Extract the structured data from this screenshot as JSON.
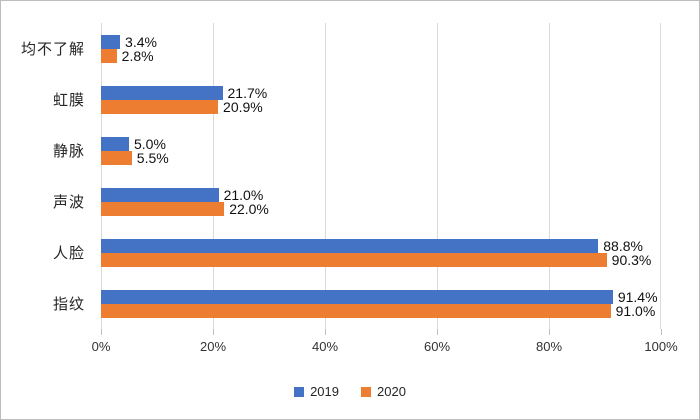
{
  "chart_data": {
    "type": "bar",
    "orientation": "horizontal",
    "title": "",
    "xlabel": "",
    "ylabel": "",
    "categories_order": "top-to-bottom",
    "categories": [
      "均不了解",
      "虹膜",
      "静脉",
      "声波",
      "人脸",
      "指纹"
    ],
    "series": [
      {
        "name": "2019",
        "color": "#4472C4",
        "values": [
          3.4,
          21.7,
          5.0,
          21.0,
          88.8,
          91.4
        ],
        "labels": [
          "3.4%",
          "21.7%",
          "5.0%",
          "21.0%",
          "88.8%",
          "91.4%"
        ]
      },
      {
        "name": "2020",
        "color": "#ED7D31",
        "values": [
          2.8,
          20.9,
          5.5,
          22.0,
          90.3,
          91.0
        ],
        "labels": [
          "2.8%",
          "20.9%",
          "5.5%",
          "22.0%",
          "90.3%",
          "91.0%"
        ]
      }
    ],
    "xlim": [
      0,
      100
    ],
    "x_ticks": [
      "0%",
      "20%",
      "40%",
      "60%",
      "80%",
      "100%"
    ],
    "grid": true,
    "legend_position": "bottom"
  },
  "legend": {
    "items": [
      {
        "label": "2019",
        "color": "#4472C4"
      },
      {
        "label": "2020",
        "color": "#ED7D31"
      }
    ]
  },
  "colors": {
    "series_2019": "#4472C4",
    "series_2020": "#ED7D31",
    "gridline": "#D9D9D9",
    "tick": "#BFBFBF",
    "axis_text": "#333333",
    "category_text": "#262626",
    "data_label_text": "#111111",
    "border": "#BDBDBD",
    "background": "#FFFFFF"
  }
}
